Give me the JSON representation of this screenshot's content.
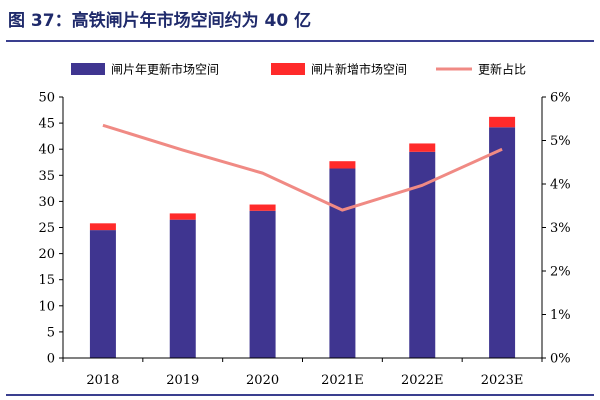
{
  "title": "图 37：高铁闸片年市场空间约为 40 亿",
  "chart_data": {
    "type": "bar",
    "categories": [
      "2018",
      "2019",
      "2020",
      "2021E",
      "2022E",
      "2023E"
    ],
    "series": [
      {
        "name": "闸片年更新市场空间",
        "kind": "bar",
        "stack": "a",
        "axis": "left",
        "color": "#3f3590",
        "values": [
          24.5,
          26.5,
          28.2,
          36.3,
          39.5,
          44.2
        ]
      },
      {
        "name": "闸片新增市场空间",
        "kind": "bar",
        "stack": "a",
        "axis": "left",
        "color": "#ff2a2a",
        "values": [
          1.3,
          1.2,
          1.2,
          1.4,
          1.6,
          2.0
        ]
      },
      {
        "name": "更新占比",
        "kind": "line",
        "axis": "right",
        "color": "#f08a84",
        "unit": "%",
        "values": [
          5.35,
          4.78,
          4.25,
          3.4,
          3.97,
          4.8
        ]
      }
    ],
    "y_left": {
      "min": 0,
      "max": 50,
      "ticks": [
        0,
        5,
        10,
        15,
        20,
        25,
        30,
        35,
        40,
        45,
        50
      ]
    },
    "y_right": {
      "min": 0,
      "max": 6,
      "ticks": [
        "0%",
        "1%",
        "2%",
        "3%",
        "4%",
        "5%",
        "6%"
      ]
    },
    "legend_position": "top",
    "grid": false
  }
}
